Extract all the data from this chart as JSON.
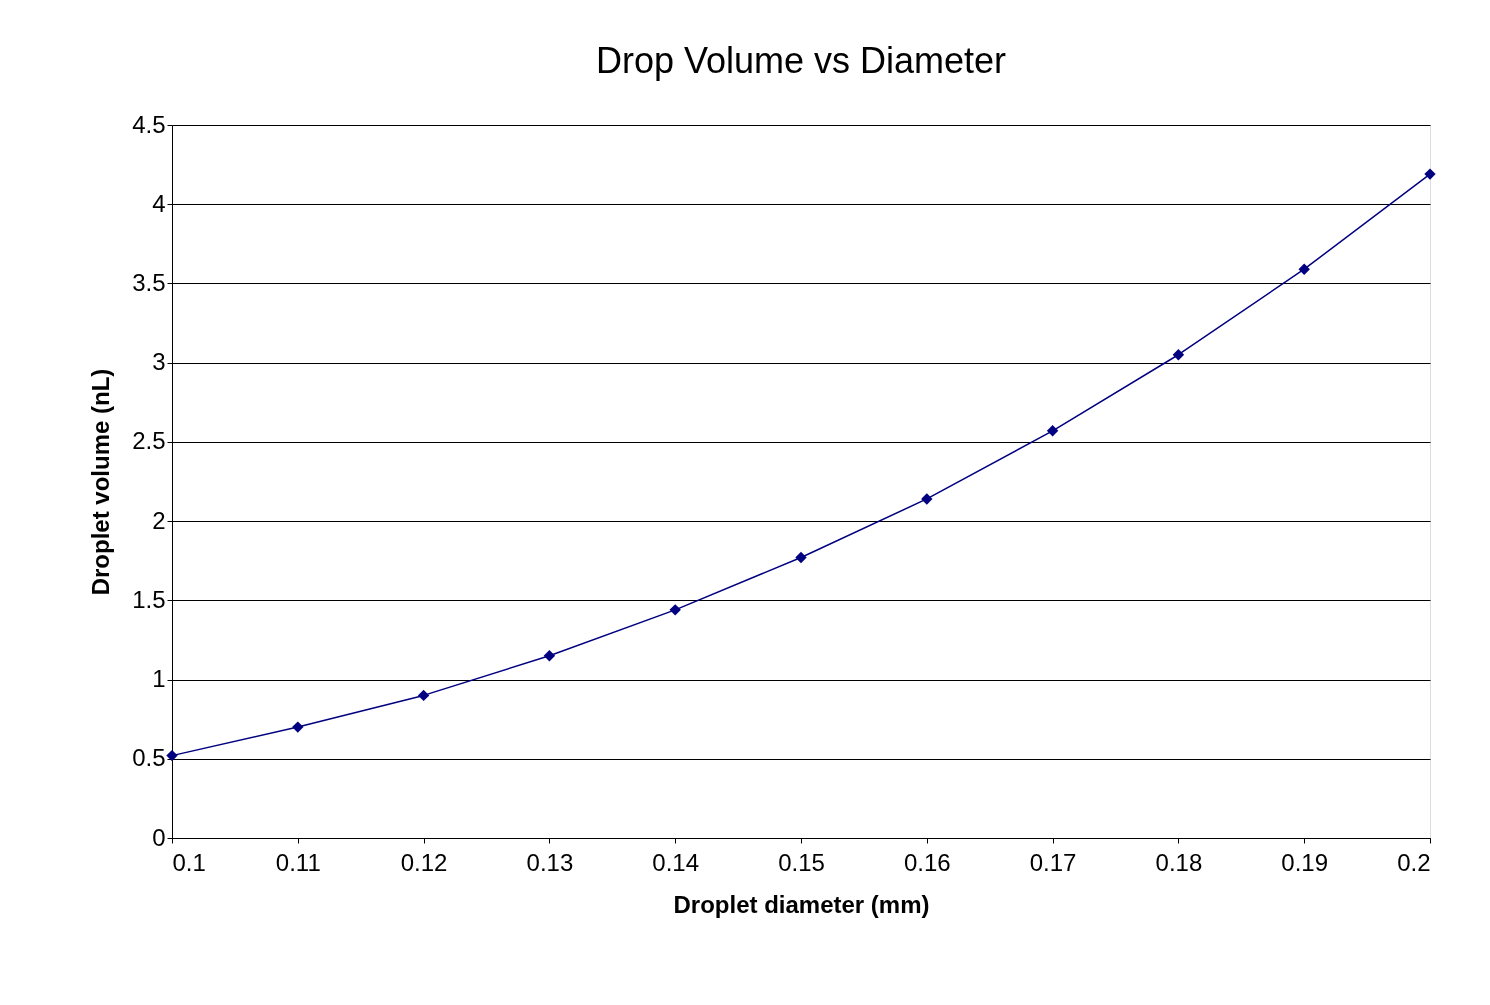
{
  "chart_data": {
    "type": "line",
    "title": "Drop Volume vs Diameter",
    "xlabel": "Droplet diameter (mm)",
    "ylabel": "Droplet volume (nL)",
    "x": [
      0.1,
      0.11,
      0.12,
      0.13,
      0.14,
      0.15,
      0.16,
      0.17,
      0.18,
      0.19,
      0.2
    ],
    "series": [
      {
        "color": "#000080",
        "values": [
          0.52,
          0.7,
          0.9,
          1.15,
          1.44,
          1.77,
          2.14,
          2.57,
          3.05,
          3.59,
          4.19
        ]
      }
    ],
    "xlim": [
      0.1,
      0.2
    ],
    "xticks": [
      0.1,
      0.11,
      0.12,
      0.13,
      0.14,
      0.15,
      0.16,
      0.17,
      0.18,
      0.19,
      0.2
    ],
    "ylim": [
      0,
      4.5
    ],
    "yticks": [
      0,
      0.5,
      1,
      1.5,
      2,
      2.5,
      3,
      3.5,
      4,
      4.5
    ],
    "grid": "y",
    "legend": false,
    "marker": "diamond",
    "line_style": "solid"
  }
}
